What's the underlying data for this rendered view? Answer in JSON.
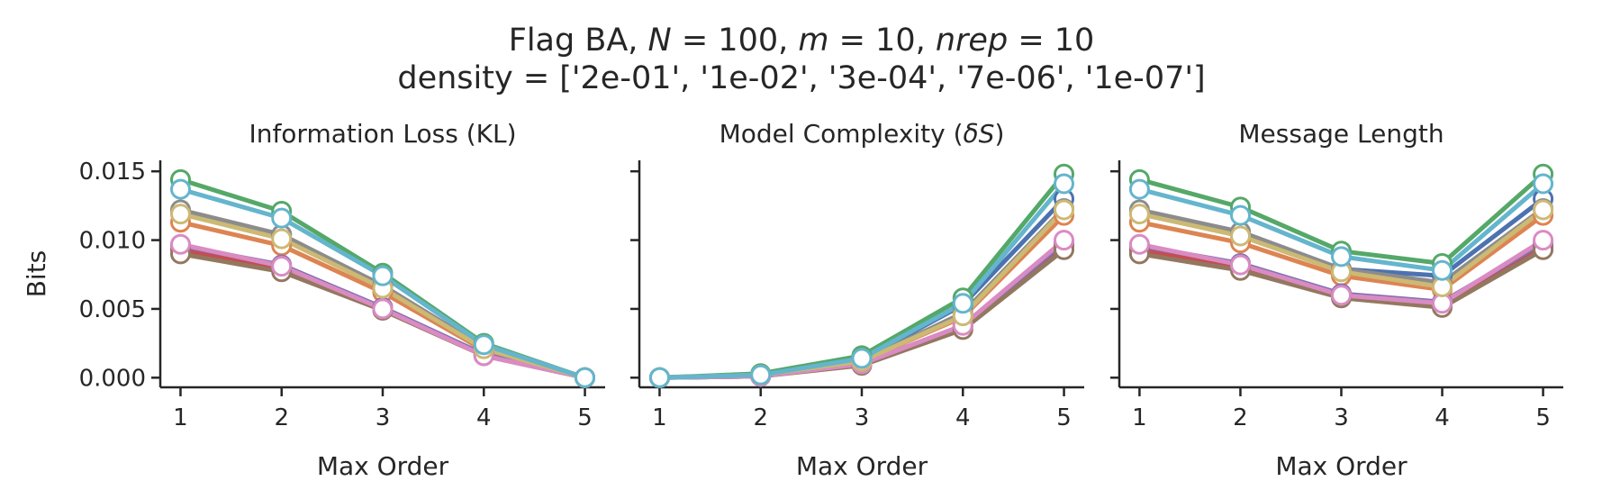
{
  "figure": {
    "title_line1_parts": [
      "Flag BA, ",
      "N",
      " = 100, ",
      "m",
      " = 10, ",
      "nrep",
      " = 10"
    ],
    "title_line2": "density = ['2e-01', '1e-02', '3e-04', '7e-06', '1e-07']"
  },
  "chart_data": [
    {
      "type": "line",
      "title": "Information Loss (KL)",
      "xlabel": "Max Order",
      "ylabel": "Bits",
      "x": [
        1,
        2,
        3,
        4,
        5
      ],
      "xlim": [
        0.8,
        5.2
      ],
      "ylim": [
        -0.0007,
        0.0158
      ],
      "yticks": [
        0.0,
        0.005,
        0.01,
        0.015
      ],
      "ytick_labels": [
        "0.000",
        "0.005",
        "0.010",
        "0.015"
      ],
      "grid": false,
      "series": [
        {
          "color": "#4c72b0",
          "values": [
            0.0121,
            0.0104,
            0.0066,
            0.0021,
            0.0
          ]
        },
        {
          "color": "#dd8452",
          "values": [
            0.0113,
            0.0096,
            0.0062,
            0.002,
            0.0
          ]
        },
        {
          "color": "#55a868",
          "values": [
            0.0144,
            0.0121,
            0.0076,
            0.0025,
            0.0
          ]
        },
        {
          "color": "#c44e52",
          "values": [
            0.0093,
            0.008,
            0.0051,
            0.0016,
            0.0
          ]
        },
        {
          "color": "#8172b3",
          "values": [
            0.0096,
            0.0082,
            0.0051,
            0.0017,
            0.0
          ]
        },
        {
          "color": "#937860",
          "values": [
            0.009,
            0.0077,
            0.0049,
            0.0016,
            0.0
          ]
        },
        {
          "color": "#da8bc3",
          "values": [
            0.0097,
            0.0081,
            0.005,
            0.0016,
            0.0
          ]
        },
        {
          "color": "#8c8c8c",
          "values": [
            0.0122,
            0.0104,
            0.0067,
            0.0022,
            0.0
          ]
        },
        {
          "color": "#ccb974",
          "values": [
            0.0119,
            0.0101,
            0.0065,
            0.0021,
            0.0
          ]
        },
        {
          "color": "#64b5cd",
          "values": [
            0.0137,
            0.0116,
            0.0074,
            0.0024,
            0.0
          ]
        }
      ]
    },
    {
      "type": "line",
      "title_parts": [
        "Model Complexity (",
        "δS",
        ")"
      ],
      "xlabel": "Max Order",
      "x": [
        1,
        2,
        3,
        4,
        5
      ],
      "xlim": [
        0.8,
        5.2
      ],
      "ylim": [
        -0.0007,
        0.0158
      ],
      "yticks": [
        0.0,
        0.005,
        0.01,
        0.015
      ],
      "grid": false,
      "series": [
        {
          "color": "#4c72b0",
          "values": [
            0.0,
            0.0002,
            0.0013,
            0.0053,
            0.013
          ]
        },
        {
          "color": "#dd8452",
          "values": [
            0.0,
            0.0002,
            0.0012,
            0.0044,
            0.0118
          ]
        },
        {
          "color": "#55a868",
          "values": [
            0.0,
            0.0003,
            0.0016,
            0.0058,
            0.0148
          ]
        },
        {
          "color": "#c44e52",
          "values": [
            0.0,
            0.0001,
            0.001,
            0.0037,
            0.0096
          ]
        },
        {
          "color": "#8172b3",
          "values": [
            0.0,
            0.0001,
            0.001,
            0.0038,
            0.0098
          ]
        },
        {
          "color": "#937860",
          "values": [
            0.0,
            0.0001,
            0.0009,
            0.0035,
            0.0093
          ]
        },
        {
          "color": "#da8bc3",
          "values": [
            0.0,
            0.0001,
            0.001,
            0.0038,
            0.01
          ]
        },
        {
          "color": "#8c8c8c",
          "values": [
            0.0,
            0.0002,
            0.0012,
            0.0047,
            0.0123
          ]
        },
        {
          "color": "#ccb974",
          "values": [
            0.0,
            0.0002,
            0.0012,
            0.0045,
            0.0122
          ]
        },
        {
          "color": "#64b5cd",
          "values": [
            0.0,
            0.0002,
            0.0014,
            0.0054,
            0.0141
          ]
        }
      ]
    },
    {
      "type": "line",
      "title": "Message Length",
      "xlabel": "Max Order",
      "x": [
        1,
        2,
        3,
        4,
        5
      ],
      "xlim": [
        0.8,
        5.2
      ],
      "ylim": [
        -0.0007,
        0.0158
      ],
      "yticks": [
        0.0,
        0.005,
        0.01,
        0.015
      ],
      "grid": false,
      "series": [
        {
          "color": "#4c72b0",
          "values": [
            0.0121,
            0.0106,
            0.0079,
            0.0074,
            0.013
          ]
        },
        {
          "color": "#dd8452",
          "values": [
            0.0113,
            0.0098,
            0.0074,
            0.0064,
            0.0118
          ]
        },
        {
          "color": "#55a868",
          "values": [
            0.0144,
            0.0124,
            0.0092,
            0.0083,
            0.0148
          ]
        },
        {
          "color": "#c44e52",
          "values": [
            0.0093,
            0.0081,
            0.0061,
            0.0053,
            0.0096
          ]
        },
        {
          "color": "#8172b3",
          "values": [
            0.0096,
            0.0083,
            0.0061,
            0.0055,
            0.0098
          ]
        },
        {
          "color": "#937860",
          "values": [
            0.009,
            0.0078,
            0.0058,
            0.0051,
            0.0093
          ]
        },
        {
          "color": "#da8bc3",
          "values": [
            0.0097,
            0.0082,
            0.006,
            0.0054,
            0.01
          ]
        },
        {
          "color": "#8c8c8c",
          "values": [
            0.0122,
            0.0106,
            0.0079,
            0.0069,
            0.0123
          ]
        },
        {
          "color": "#ccb974",
          "values": [
            0.0119,
            0.0103,
            0.0077,
            0.0066,
            0.0122
          ]
        },
        {
          "color": "#64b5cd",
          "values": [
            0.0137,
            0.0118,
            0.0088,
            0.0078,
            0.0141
          ]
        }
      ]
    }
  ]
}
